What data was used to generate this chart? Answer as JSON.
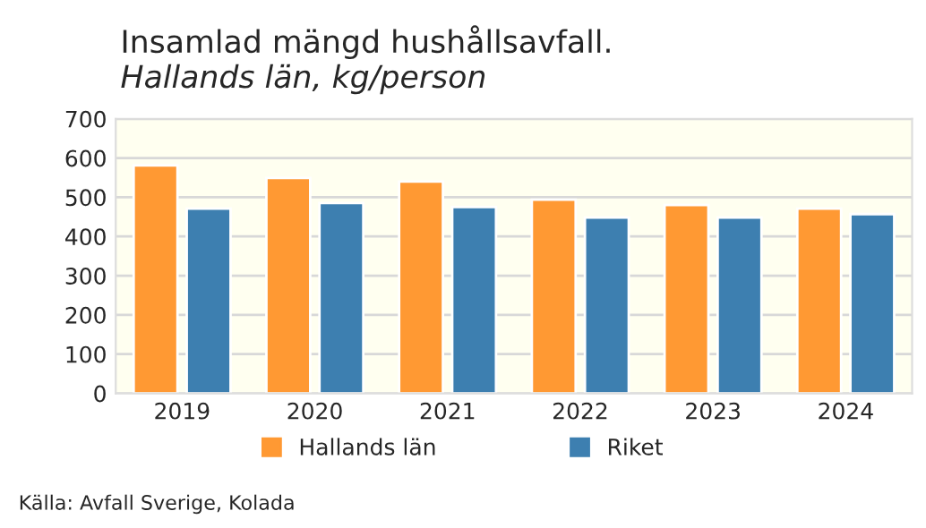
{
  "chart_data": {
    "type": "bar",
    "title": "Insamlad mängd hushållsavfall.",
    "subtitle": "Hallands län, kg/person",
    "categories": [
      "2019",
      "2020",
      "2021",
      "2022",
      "2023",
      "2024"
    ],
    "series": [
      {
        "name": "Hallands län",
        "color": "#ff9933",
        "values": [
          581,
          549,
          540,
          494,
          480,
          471
        ]
      },
      {
        "name": "Riket",
        "color": "#3d7fb0",
        "values": [
          471,
          485,
          475,
          448,
          448,
          457
        ]
      }
    ],
    "ylim": [
      0,
      700
    ],
    "yticks": [
      0,
      100,
      200,
      300,
      400,
      500,
      600,
      700
    ],
    "grid": "y",
    "legend": "bottom",
    "annotations": [
      "Källa: Avfall Sverige, Kolada"
    ]
  }
}
